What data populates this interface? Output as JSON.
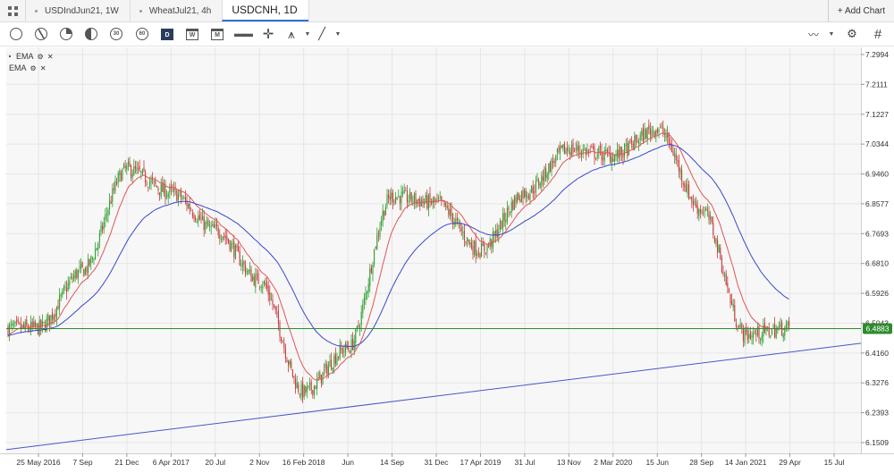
{
  "tabs": [
    {
      "label": "USDIndJun21, 1W",
      "active": false
    },
    {
      "label": "WheatJul21, 4h",
      "active": false
    },
    {
      "label": "USDCNH, 1D",
      "active": true
    }
  ],
  "add_chart_label": "+ Add Chart",
  "toolbar": {
    "icons": [
      "circle-icon",
      "clock-icon",
      "quarter-circle-icon",
      "half-circle-icon",
      "circle-30m-icon",
      "circle-60m-icon",
      "calendar-day-icon",
      "calendar-week-icon",
      "calendar-month-icon",
      "chart-style-icon",
      "crosshair-icon",
      "text-tool-icon",
      "line-tool-icon",
      "chart-type-icon",
      "grid-icon"
    ],
    "timeframes": [
      "5",
      "15",
      "30",
      "60",
      "D",
      "W",
      "M"
    ]
  },
  "legend": [
    {
      "label": "EMA",
      "tools": "⚙ ✕"
    },
    {
      "label": "EMA",
      "tools": "⚙ ✕"
    }
  ],
  "colors": {
    "ema_fast": "#e05555",
    "ema_slow": "#3a48c8",
    "trendline": "#4a56c8",
    "horizontal_line": "#2e8b2e",
    "candle_up": "#2e9e2e",
    "candle_down": "#c83a3a",
    "price_tag": "#2e8b2e"
  },
  "chart_data": {
    "type": "candlestick",
    "symbol": "USDCNH",
    "timeframe": "1D",
    "y_ticks": [
      "7.2994",
      "7.2111",
      "7.1227",
      "7.0344",
      "6.9460",
      "6.8577",
      "6.7693",
      "6.6810",
      "6.5926",
      "6.5043",
      "6.4160",
      "6.3276",
      "6.2393",
      "6.1509"
    ],
    "ylim": [
      6.1509,
      7.2994
    ],
    "x_ticks": [
      "25 May 2016",
      "7 Sep",
      "21 Dec",
      "6 Apr 2017",
      "20 Jul",
      "2 Nov",
      "16 Feb 2018",
      "Jun",
      "14 Sep",
      "31 Dec",
      "17 Apr 2019",
      "31 Jul",
      "13 Nov",
      "2 Mar 2020",
      "15 Jun",
      "28 Sep",
      "14 Jan 2021",
      "29 Apr",
      "15 Jul"
    ],
    "current_price": "6.4883",
    "horizontal_line": 6.4883,
    "trendline": {
      "from": [
        "25 May 2016",
        6.142
      ],
      "to": [
        "15 Jul",
        6.435
      ]
    },
    "price_path": [
      [
        "25 May 2016",
        6.49
      ],
      [
        "7 Sep",
        6.66
      ],
      [
        "21 Dec",
        6.96
      ],
      [
        "6 Apr 2017",
        6.89
      ],
      [
        "20 Jul",
        6.78
      ],
      [
        "2 Nov",
        6.63
      ],
      [
        "16 Feb 2018",
        6.3
      ],
      [
        "Jun",
        6.43
      ],
      [
        "14 Sep",
        6.88
      ],
      [
        "31 Dec",
        6.86
      ],
      [
        "17 Apr 2019",
        6.72
      ],
      [
        "31 Jul",
        6.89
      ],
      [
        "13 Nov",
        7.02
      ],
      [
        "2 Mar 2020",
        7.0
      ],
      [
        "15 Jun",
        7.08
      ],
      [
        "28 Sep",
        6.84
      ],
      [
        "14 Jan 2021",
        6.47
      ],
      [
        "29 Apr",
        6.49
      ]
    ],
    "series": [
      {
        "name": "EMA",
        "color": "#e05555"
      },
      {
        "name": "EMA",
        "color": "#3a48c8"
      }
    ],
    "grid": true
  }
}
